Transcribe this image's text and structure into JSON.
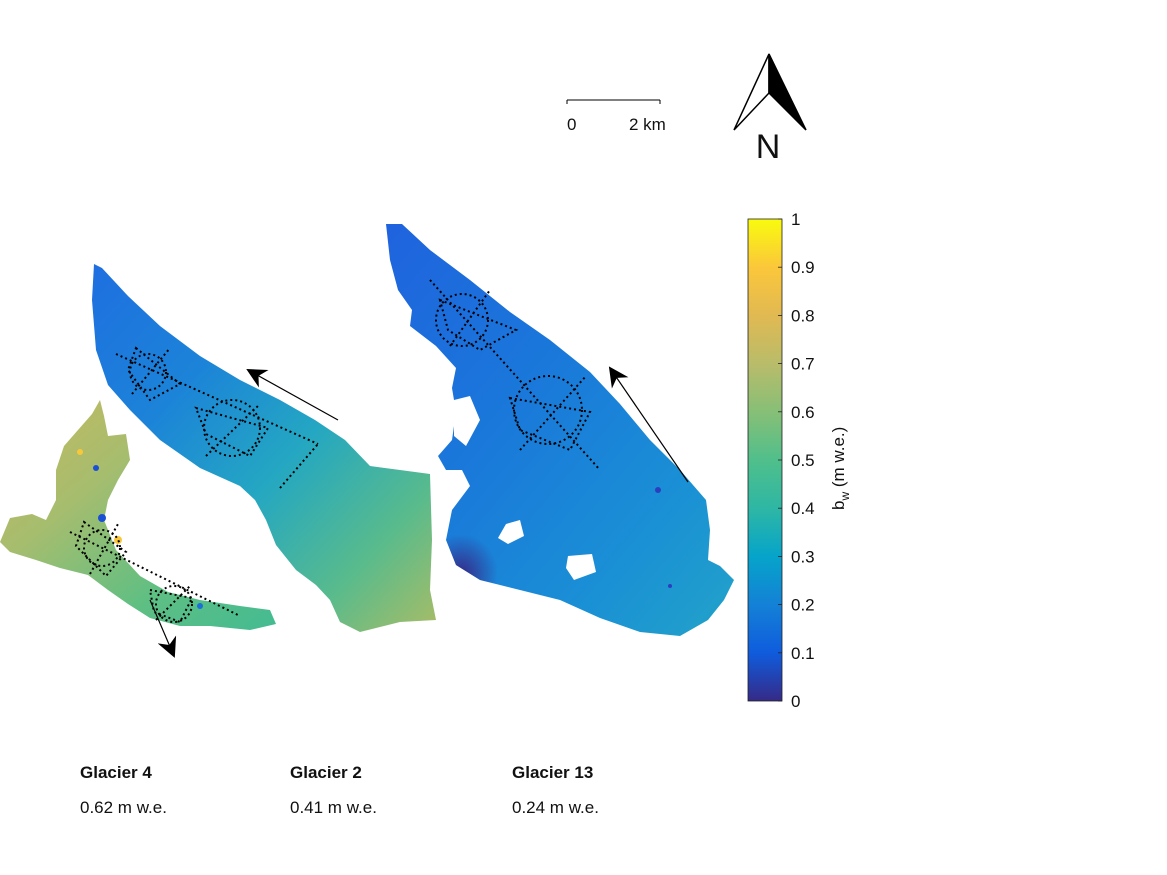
{
  "scale_bar": {
    "start_label": "0",
    "end_label": "2 km"
  },
  "north_arrow": {
    "label": "N",
    "icon": "north-arrow-icon"
  },
  "colorbar": {
    "label_main": "b",
    "label_sub": "w",
    "label_unit": " (m w.e.)",
    "range": [
      0,
      1
    ],
    "colormap": "parula",
    "ticks": [
      "0",
      "0.1",
      "0.2",
      "0.3",
      "0.4",
      "0.5",
      "0.6",
      "0.7",
      "0.8",
      "0.9",
      "1"
    ]
  },
  "glaciers": [
    {
      "name": "Glacier 4",
      "value": "0.62 m w.e."
    },
    {
      "name": "Glacier 2",
      "value": "0.41 m w.e."
    },
    {
      "name": "Glacier 13",
      "value": "0.24 m w.e."
    }
  ],
  "colors": {
    "low": "#352a87",
    "mid_low": "#0f5cdd",
    "mid": "#1ba9c6",
    "mid_high": "#7cbe89",
    "high": "#f9bd3c",
    "top": "#f9fb0e"
  }
}
